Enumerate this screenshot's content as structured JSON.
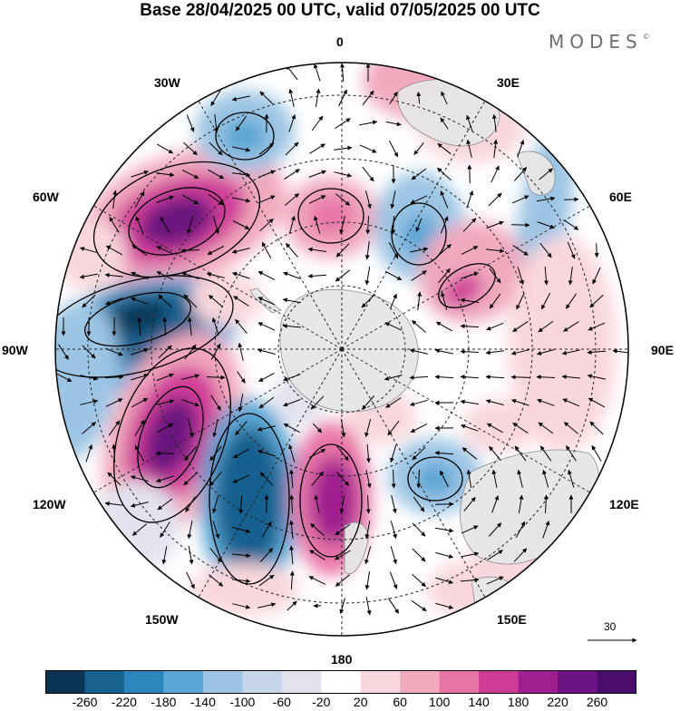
{
  "title": "Base 28/04/2025 00 UTC, valid 07/05/2025 00 UTC",
  "brand": "MODES",
  "brand_mark": "©",
  "map": {
    "projection": "south-polar stereographic",
    "longitude_labels": {
      "top": "0",
      "top_right": "30E",
      "right_upper": "60E",
      "right": "90E",
      "right_lower": "120E",
      "bottom_right": "150E",
      "bottom": "180",
      "bottom_left": "150W",
      "left_lower": "120W",
      "left": "90W",
      "left_upper": "60W",
      "top_left": "30W"
    },
    "land_color": "#e6e6e6",
    "vector_reference": "30"
  },
  "colorbar": {
    "colors": [
      "#0a3552",
      "#17618f",
      "#2a86bc",
      "#5aa6d4",
      "#9cc5e4",
      "#c7d6ea",
      "#e2e3ef",
      "#ffffff",
      "#f9d7dc",
      "#f1a9bd",
      "#e875a7",
      "#cf3c98",
      "#a01e8f",
      "#6b1380",
      "#4a0e6a"
    ],
    "labels": [
      "-260",
      "-220",
      "-180",
      "-140",
      "-100",
      "-60",
      "-20",
      "20",
      "60",
      "100",
      "140",
      "180",
      "220",
      "260"
    ]
  }
}
